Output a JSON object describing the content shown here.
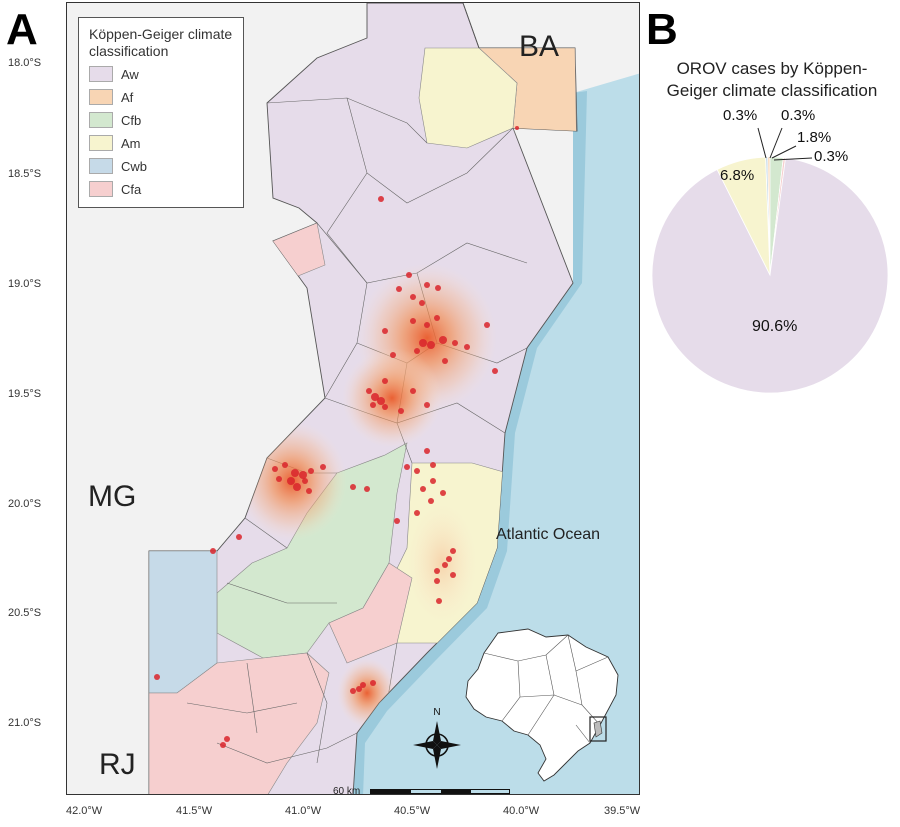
{
  "panels": {
    "a": "A",
    "b": "B"
  },
  "map": {
    "legend": {
      "title": "Köppen-Geiger climate classification",
      "items": [
        {
          "code": "Aw",
          "color": "#e6dcea"
        },
        {
          "code": "Af",
          "color": "#f8d5b4"
        },
        {
          "code": "Cfb",
          "color": "#d3e8cf"
        },
        {
          "code": "Am",
          "color": "#f7f4cf"
        },
        {
          "code": "Cwb",
          "color": "#c6dae8"
        },
        {
          "code": "Cfa",
          "color": "#f6cfcf"
        }
      ]
    },
    "state_labels": {
      "ba": "BA",
      "mg": "MG",
      "rj": "RJ"
    },
    "ocean_label": "Atlantic Ocean",
    "latitude_ticks": [
      "18.0°S",
      "18.5°S",
      "19.0°S",
      "19.5°S",
      "20.0°S",
      "20.5°S",
      "21.0°S"
    ],
    "longitude_ticks": [
      "42.0°W",
      "41.5°W",
      "41.0°W",
      "40.5°W",
      "40.0°W",
      "39.5°W"
    ],
    "scale_bar": "60 km",
    "north_label": "N",
    "colors": {
      "ocean": "#bcdde9",
      "ocean_coast": "#7fb9d2",
      "outside": "#f2f2f2",
      "case_point": "#d9252b",
      "hotspot": "#f07a3c"
    }
  },
  "chart_data": {
    "type": "pie",
    "title": "OROV cases by Köppen-Geiger climate classification",
    "slices": [
      {
        "category": "Aw",
        "value": 90.6,
        "label": "90.6%",
        "color": "#e6dcea"
      },
      {
        "category": "Am",
        "value": 6.8,
        "label": "6.8%",
        "color": "#f7f4cf"
      },
      {
        "category": "Cwb",
        "value": 0.3,
        "label": "0.3%",
        "color": "#c6dae8"
      },
      {
        "category": "Af",
        "value": 0.3,
        "label": "0.3%",
        "color": "#f8d5b4"
      },
      {
        "category": "Cfb",
        "value": 1.8,
        "label": "1.8%",
        "color": "#d3e8cf"
      },
      {
        "category": "Cfa",
        "value": 0.3,
        "label": "0.3%",
        "color": "#f6cfcf"
      }
    ]
  }
}
